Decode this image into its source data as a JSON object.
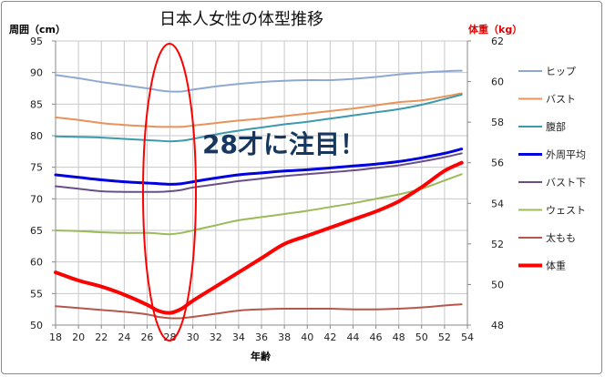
{
  "chart_data": {
    "type": "line",
    "title": "日本人女性の体型推移",
    "xlabel": "年齢",
    "ylabel_left": "周囲（cm）",
    "ylabel_right": "体重（kg）",
    "x": [
      18,
      20,
      22,
      24,
      26,
      28,
      30,
      32,
      34,
      36,
      38,
      40,
      42,
      44,
      46,
      48,
      50,
      52,
      54
    ],
    "x_ticks": [
      "18",
      "20",
      "22",
      "24",
      "26",
      "28",
      "30",
      "32",
      "34",
      "36",
      "38",
      "40",
      "42",
      "44",
      "46",
      "48",
      "50",
      "52",
      "54"
    ],
    "ylim_left": [
      50,
      95
    ],
    "y_ticks_left": [
      "95",
      "90",
      "85",
      "80",
      "75",
      "70",
      "65",
      "60",
      "55",
      "50"
    ],
    "ylim_right": [
      48,
      62
    ],
    "y_ticks_right": [
      "62",
      "60",
      "58",
      "56",
      "54",
      "52",
      "50",
      "48"
    ],
    "grid": true,
    "legend_position": "right",
    "annotation": "28才に注目！",
    "series": [
      {
        "name": "ヒップ",
        "axis": "left",
        "color": "#8EA9D1",
        "width": 2,
        "x": [
          18,
          20,
          22,
          24,
          26,
          27,
          28,
          29,
          30,
          32,
          34,
          36,
          38,
          40,
          42,
          44,
          46,
          48,
          50,
          52,
          53.5
        ],
        "values": [
          89.6,
          89.1,
          88.5,
          88.0,
          87.5,
          87.2,
          87.0,
          87.0,
          87.3,
          87.8,
          88.2,
          88.5,
          88.7,
          88.8,
          88.8,
          89.0,
          89.3,
          89.7,
          90.0,
          90.2,
          90.3
        ]
      },
      {
        "name": "バスト",
        "axis": "left",
        "color": "#E8935A",
        "width": 2,
        "x": [
          18,
          20,
          22,
          24,
          26,
          27,
          28,
          29,
          30,
          32,
          34,
          36,
          38,
          40,
          42,
          44,
          46,
          48,
          50,
          52,
          53.5
        ],
        "values": [
          82.9,
          82.5,
          82.0,
          81.7,
          81.5,
          81.4,
          81.4,
          81.4,
          81.6,
          82.0,
          82.4,
          82.7,
          83.1,
          83.5,
          83.9,
          84.3,
          84.8,
          85.3,
          85.6,
          86.2,
          86.7
        ]
      },
      {
        "name": "腹部",
        "axis": "left",
        "color": "#3C9AAE",
        "width": 2,
        "x": [
          18,
          20,
          22,
          24,
          26,
          27,
          28,
          29,
          30,
          32,
          34,
          36,
          38,
          40,
          42,
          44,
          46,
          48,
          50,
          52,
          53.5
        ],
        "values": [
          79.9,
          79.8,
          79.7,
          79.5,
          79.3,
          79.2,
          79.1,
          79.2,
          79.5,
          80.2,
          80.8,
          81.3,
          81.8,
          82.2,
          82.7,
          83.2,
          83.7,
          84.2,
          84.9,
          85.8,
          86.5
        ]
      },
      {
        "name": "外周平均",
        "axis": "left",
        "color": "#0000E0",
        "width": 3,
        "x": [
          18,
          20,
          22,
          24,
          26,
          27,
          28,
          29,
          30,
          32,
          34,
          36,
          38,
          40,
          42,
          44,
          46,
          48,
          50,
          52,
          53.5
        ],
        "values": [
          73.8,
          73.4,
          73.0,
          72.7,
          72.5,
          72.4,
          72.3,
          72.4,
          72.7,
          73.3,
          73.8,
          74.1,
          74.4,
          74.6,
          74.9,
          75.2,
          75.5,
          75.9,
          76.5,
          77.2,
          77.9
        ]
      },
      {
        "name": "バスト下",
        "axis": "left",
        "color": "#6A4F86",
        "width": 2,
        "x": [
          18,
          20,
          22,
          24,
          26,
          27,
          28,
          29,
          30,
          32,
          34,
          36,
          38,
          40,
          42,
          44,
          46,
          48,
          50,
          52,
          53.5
        ],
        "values": [
          72.0,
          71.6,
          71.2,
          71.1,
          71.1,
          71.1,
          71.2,
          71.4,
          71.8,
          72.3,
          72.8,
          73.2,
          73.6,
          73.9,
          74.2,
          74.5,
          74.9,
          75.3,
          75.9,
          76.6,
          77.2
        ]
      },
      {
        "name": "ウェスト",
        "axis": "left",
        "color": "#9BBB59",
        "width": 2,
        "x": [
          18,
          20,
          22,
          24,
          26,
          27,
          28,
          29,
          30,
          32,
          34,
          36,
          38,
          40,
          42,
          44,
          46,
          48,
          50,
          52,
          53.5
        ],
        "values": [
          65.0,
          64.9,
          64.7,
          64.6,
          64.6,
          64.5,
          64.4,
          64.6,
          65.0,
          65.8,
          66.6,
          67.1,
          67.6,
          68.1,
          68.7,
          69.3,
          70.0,
          70.7,
          71.6,
          72.9,
          73.9
        ]
      },
      {
        "name": "太もも",
        "axis": "left",
        "color": "#B5574B",
        "width": 2,
        "x": [
          18,
          20,
          22,
          24,
          26,
          27,
          28,
          29,
          30,
          32,
          34,
          36,
          38,
          40,
          42,
          44,
          46,
          48,
          50,
          52,
          53.5
        ],
        "values": [
          53.0,
          52.7,
          52.4,
          52.1,
          51.7,
          51.3,
          51.1,
          51.1,
          51.3,
          51.8,
          52.3,
          52.5,
          52.6,
          52.6,
          52.6,
          52.5,
          52.5,
          52.6,
          52.8,
          53.1,
          53.3
        ]
      },
      {
        "name": "体重",
        "axis": "right",
        "color": "#FF0000",
        "width": 4,
        "x": [
          18,
          20,
          22,
          24,
          26,
          27,
          28,
          29,
          30,
          32,
          34,
          36,
          38,
          40,
          42,
          44,
          46,
          48,
          50,
          52,
          53.5
        ],
        "values": [
          50.6,
          50.2,
          49.9,
          49.5,
          49.0,
          48.7,
          48.6,
          48.8,
          49.2,
          49.9,
          50.6,
          51.3,
          52.0,
          52.4,
          52.8,
          53.2,
          53.6,
          54.1,
          54.8,
          55.6,
          56.0
        ]
      }
    ]
  }
}
